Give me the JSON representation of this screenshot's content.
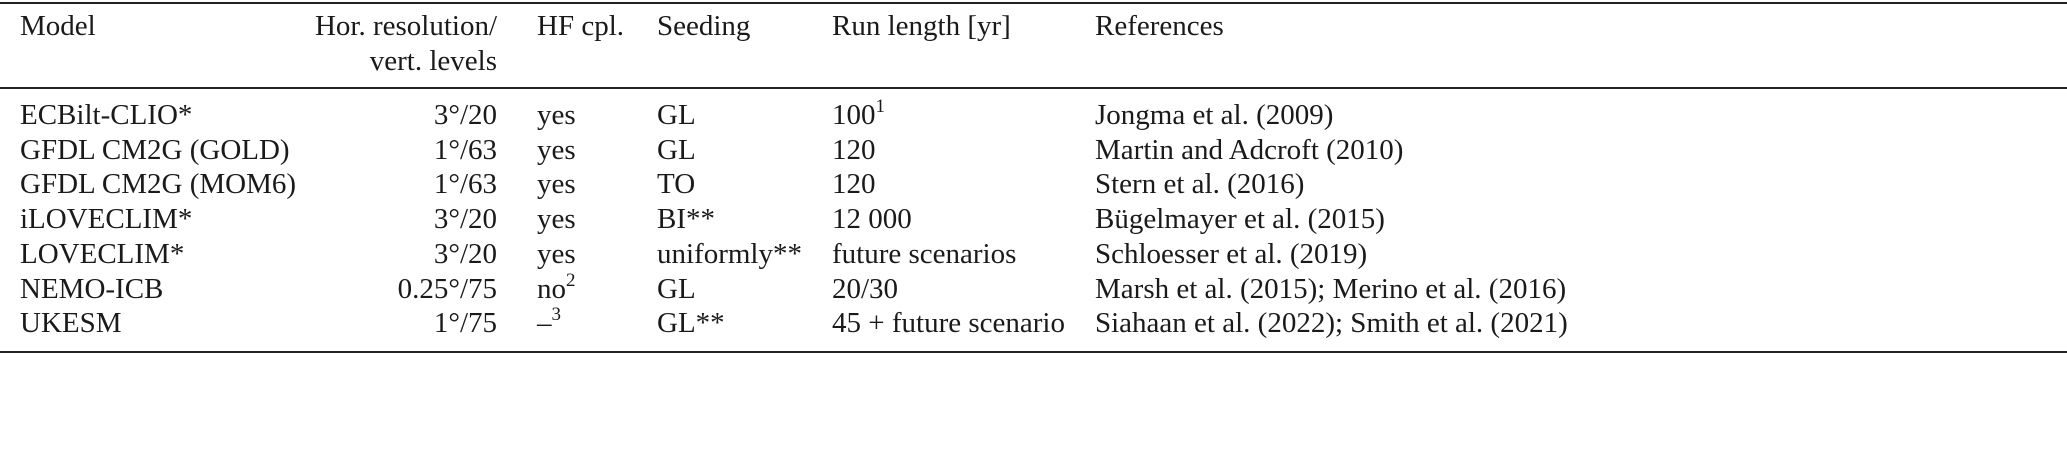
{
  "table": {
    "header": [
      "Model",
      [
        "Hor. resolution/",
        "vert. levels"
      ],
      "HF cpl.",
      "Seeding",
      "Run length [yr]",
      "References"
    ],
    "rows": [
      [
        "ECBilt-CLIO*",
        "3°/20",
        "yes",
        "GL",
        {
          "text": "100",
          "sup": "1"
        },
        "Jongma et al. (2009)"
      ],
      [
        "GFDL CM2G (GOLD)",
        "1°/63",
        "yes",
        "GL",
        "120",
        "Martin and Adcroft (2010)"
      ],
      [
        "GFDL CM2G (MOM6)",
        "1°/63",
        "yes",
        "TO",
        "120",
        "Stern et al. (2016)"
      ],
      [
        "iLOVECLIM*",
        "3°/20",
        "yes",
        "BI**",
        "12 000",
        "Bügelmayer et al. (2015)"
      ],
      [
        "LOVECLIM*",
        "3°/20",
        "yes",
        "uniformly**",
        "future scenarios",
        "Schloesser et al. (2019)"
      ],
      [
        "NEMO-ICB",
        "0.25°/75",
        {
          "text": "no",
          "sup": "2"
        },
        "GL",
        "20/30",
        "Marsh et al. (2015); Merino et al. (2016)"
      ],
      [
        "UKESM",
        "1°/75",
        {
          "text": "–",
          "sup": "3"
        },
        "GL**",
        "45 + future scenario",
        "Siahaan et al. (2022); Smith et al. (2021)"
      ]
    ]
  }
}
